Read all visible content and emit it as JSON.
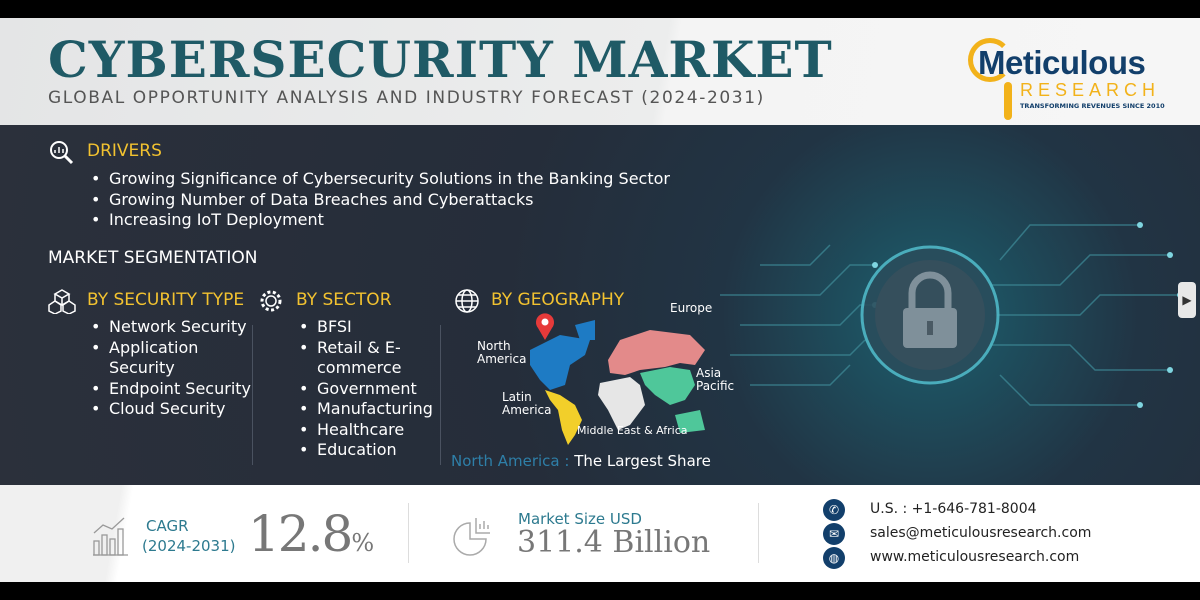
{
  "header": {
    "title": "CYBERSECURITY MARKET",
    "subtitle": "GLOBAL OPPORTUNITY ANALYSIS AND INDUSTRY FORECAST (2024-2031)",
    "logo": {
      "name": "Meticulous",
      "sub": "RESEARCH",
      "tagline": "TRANSFORMING REVENUES SINCE 2010"
    }
  },
  "drivers": {
    "title": "DRIVERS",
    "icon": "magnifier-chart-icon",
    "items": [
      "Growing Significance of Cybersecurity Solutions in the Banking Sector",
      "Growing Number of Data Breaches and Cyberattacks",
      "Increasing IoT Deployment"
    ]
  },
  "segmentation": {
    "title": "MARKET SEGMENTATION",
    "security_type": {
      "title": "BY SECURITY TYPE",
      "icon": "cubes-icon",
      "items": [
        "Network Security",
        "Application Security",
        "Endpoint Security",
        "Cloud Security"
      ]
    },
    "sector": {
      "title": "BY SECTOR",
      "icon": "gear-icon",
      "items": [
        "BFSI",
        "Retail & E-commerce",
        "Government",
        "Manufacturing",
        "Healthcare",
        "Education"
      ]
    },
    "geography": {
      "title": "BY GEOGRAPHY",
      "icon": "globe-icon",
      "regions": {
        "north_america": "North America",
        "europe": "Europe",
        "asia_pacific": "Asia Pacific",
        "latin_america": "Latin America",
        "mea": "Middle East & Africa"
      },
      "highlight_region": "North America",
      "highlight_sep": " : ",
      "highlight_text": "The Largest Share",
      "colors": {
        "north_america": "#1e7bc4",
        "europe": "#e38a8a",
        "asia_pacific": "#4fc79a",
        "latin_america": "#f2cf2a",
        "mea": "#e6e6e6"
      }
    }
  },
  "stats": {
    "cagr_label": "CAGR",
    "cagr_period": "(2024-2031)",
    "cagr_value": "12.8",
    "cagr_unit": "%",
    "market_label": "Market Size USD",
    "market_value": "311.4 Billion"
  },
  "contact": {
    "phone": "U.S. : +1-646-781-8004",
    "email": "sales@meticulousresearch.com",
    "web": "www.meticulousresearch.com"
  },
  "nav": {
    "next": "▶"
  }
}
